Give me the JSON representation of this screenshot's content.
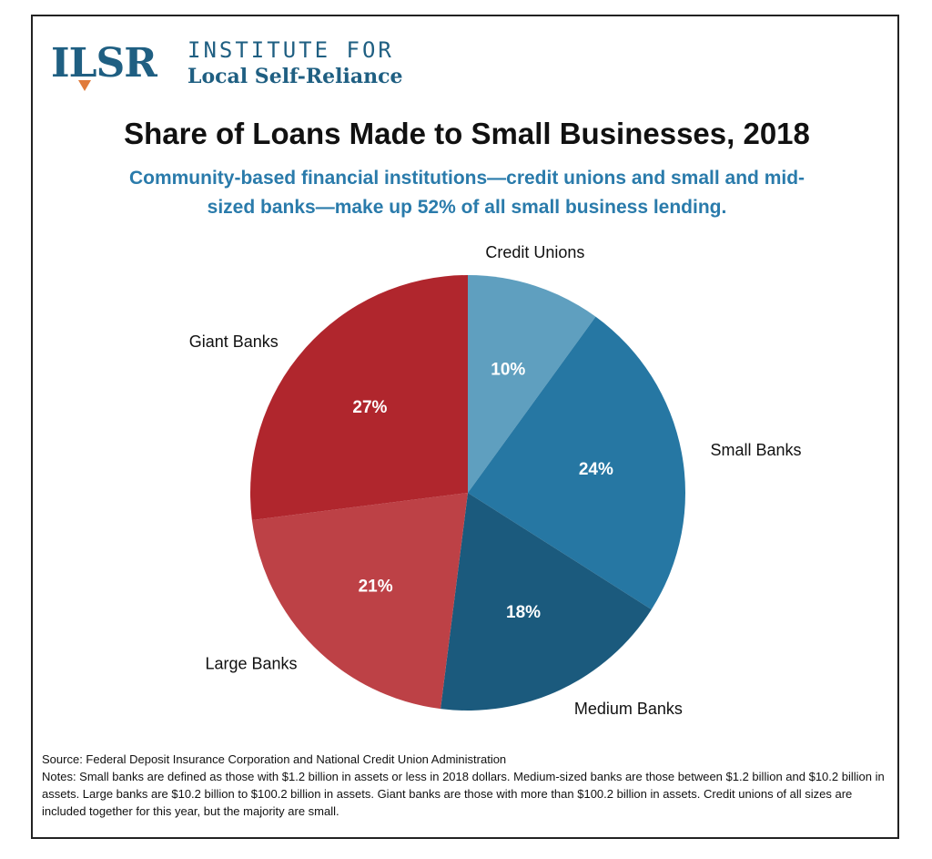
{
  "logo": {
    "mark": "ILSR",
    "line1": "INSTITUTE FOR",
    "line2": "Local Self-Reliance"
  },
  "header": {
    "title": "Share of Loans Made to Small Businesses, 2018",
    "subtitle": "Community-based financial institutions—credit unions and small and mid-sized banks—make up 52% of all small business lending."
  },
  "chart_data": {
    "type": "pie",
    "title": "Share of Loans Made to Small Businesses, 2018",
    "categories": [
      "Credit Unions",
      "Small Banks",
      "Medium Banks",
      "Large Banks",
      "Giant Banks"
    ],
    "values": [
      10,
      24,
      18,
      21,
      27
    ],
    "value_labels": [
      "10%",
      "24%",
      "18%",
      "21%",
      "27%"
    ],
    "colors": [
      "#5f9fbf",
      "#2677a3",
      "#1b5a7d",
      "#bd4146",
      "#b0262d"
    ],
    "start_angle_deg": 0,
    "direction": "clockwise"
  },
  "footer": {
    "source": "Source: Federal Deposit Insurance Corporation and National Credit Union Administration",
    "notes": "Notes: Small banks are defined as those with $1.2 billion in assets or less in 2018 dollars.  Medium-sized banks are those between $1.2 billion and $10.2 billion in assets.  Large banks are $10.2 billion to $100.2 billion in assets.  Giant banks are those with more than $100.2 billion in assets. Credit unions of all sizes are included together for this year, but the majority are small."
  }
}
